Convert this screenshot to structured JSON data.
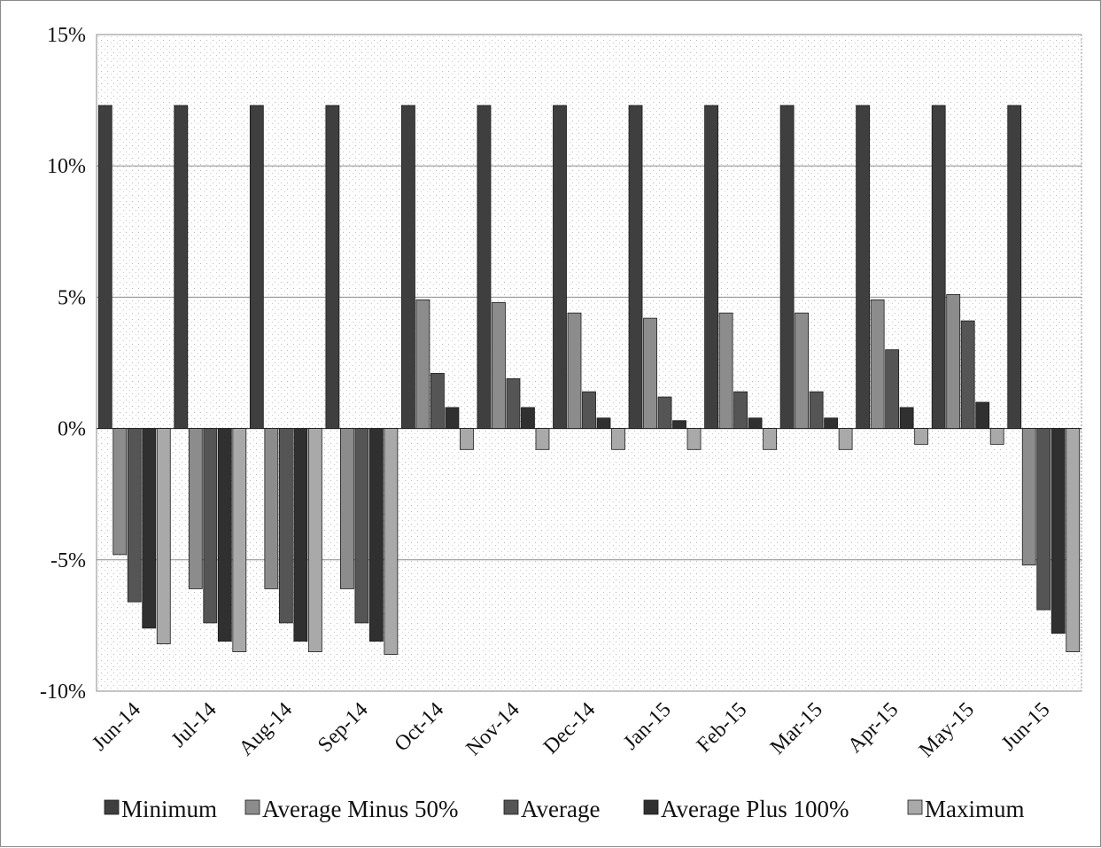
{
  "chart_data": {
    "type": "bar",
    "title": "",
    "xlabel": "",
    "ylabel": "",
    "ylim": [
      -10,
      15
    ],
    "y_ticks": [
      {
        "value": 15,
        "label": "15%"
      },
      {
        "value": 10,
        "label": "10%"
      },
      {
        "value": 5,
        "label": "5%"
      },
      {
        "value": 0,
        "label": "0%"
      },
      {
        "value": -5,
        "label": "-5%"
      },
      {
        "value": -10,
        "label": "-10%"
      }
    ],
    "grid": true,
    "legend_position": "bottom",
    "categories": [
      "Jun-14",
      "Jul-14",
      "Aug-14",
      "Sep-14",
      "Oct-14",
      "Nov-14",
      "Dec-14",
      "Jan-15",
      "Feb-15",
      "Mar-15",
      "Apr-15",
      "May-15",
      "Jun-15"
    ],
    "series": [
      {
        "name": "Minimum",
        "color": "#3f3f3f",
        "values": [
          12.3,
          12.3,
          12.3,
          12.3,
          12.3,
          12.3,
          12.3,
          12.3,
          12.3,
          12.3,
          12.3,
          12.3,
          12.3
        ]
      },
      {
        "name": "Average Minus 50%",
        "color": "#8c8c8c",
        "values": [
          -4.8,
          -6.1,
          -6.1,
          -6.1,
          4.9,
          4.8,
          4.4,
          4.2,
          4.4,
          4.4,
          4.9,
          5.1,
          -5.2
        ]
      },
      {
        "name": "Average",
        "color": "#555555",
        "values": [
          -6.6,
          -7.4,
          -7.4,
          -7.4,
          2.1,
          1.9,
          1.4,
          1.2,
          1.4,
          1.4,
          3.0,
          4.1,
          -6.9
        ]
      },
      {
        "name": "Average Plus 100%",
        "color": "#303030",
        "values": [
          -7.6,
          -8.1,
          -8.1,
          -8.1,
          0.8,
          0.8,
          0.4,
          0.3,
          0.4,
          0.4,
          0.8,
          1.0,
          -7.8
        ]
      },
      {
        "name": "Maximum",
        "color": "#a9a9a9",
        "values": [
          -8.2,
          -8.5,
          -8.5,
          -8.6,
          -0.8,
          -0.8,
          -0.8,
          -0.8,
          -0.8,
          -0.8,
          -0.6,
          -0.6,
          -8.5
        ]
      }
    ]
  }
}
